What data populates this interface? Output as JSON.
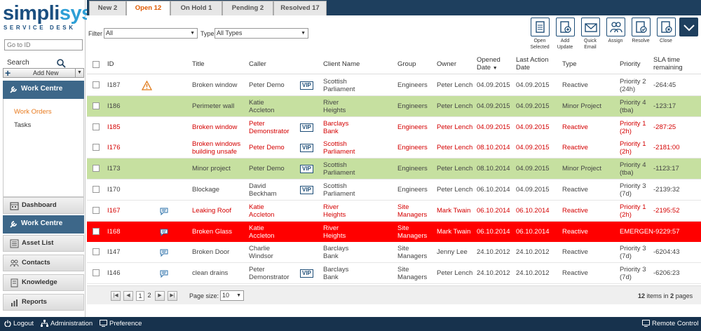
{
  "logo": {
    "word_a": "simpli",
    "word_b": "sys",
    "sub": "SERVICE DESK"
  },
  "sidebar": {
    "goto_placeholder": "Go to ID",
    "search_label": "Search",
    "add_new_label": "Add New",
    "work_centre_open": "Work Centre",
    "sub_items": [
      "Work Orders",
      "Tasks"
    ],
    "items": [
      {
        "label": "Dashboard",
        "icon": "calendar-icon"
      },
      {
        "label": "Work Centre",
        "icon": "wrench-icon"
      },
      {
        "label": "Asset List",
        "icon": "list-icon"
      },
      {
        "label": "Contacts",
        "icon": "people-icon"
      },
      {
        "label": "Knowledge",
        "icon": "book-icon"
      },
      {
        "label": "Reports",
        "icon": "chart-icon"
      }
    ]
  },
  "tabs": [
    "New 2",
    "Open 12",
    "On Hold 1",
    "Pending 2",
    "Resolved 17"
  ],
  "active_tab": "Open 12",
  "filter": {
    "filter_label": "Filter",
    "filter_value": "All",
    "type_label": "Type",
    "type_value": "All Types"
  },
  "toolbar": [
    {
      "label": "Open Selected",
      "icon": "document-icon"
    },
    {
      "label": "Add Update",
      "icon": "add-document-icon"
    },
    {
      "label": "Quick Email",
      "icon": "envelope-icon"
    },
    {
      "label": "Assign",
      "icon": "assign-people-icon"
    },
    {
      "label": "Resolve",
      "icon": "resolve-check-icon"
    },
    {
      "label": "Close",
      "icon": "close-circle-icon"
    }
  ],
  "columns": [
    "ID",
    "Title",
    "Caller",
    "Client Name",
    "Group",
    "Owner",
    "Opened Date",
    "Last Action Date",
    "Type",
    "Priority",
    "SLA time remaining"
  ],
  "rows": [
    {
      "id": "I187",
      "flag": "warning",
      "title": "Broken window",
      "caller": "Peter Demo",
      "vip": "VIP",
      "client": "Scottish Parliament",
      "group": "Engineers",
      "owner": "Peter Lench",
      "opened": "04.09.2015",
      "last": "04.09.2015",
      "type": "Reactive",
      "priority": "Priority 2 (24h)",
      "sla": "-264:45",
      "style": "normal"
    },
    {
      "id": "I186",
      "flag": "",
      "title": "Perimeter wall",
      "caller": "Katie Accleton",
      "vip": "",
      "client": "River Heights",
      "group": "Engineers",
      "owner": "Peter Lench",
      "opened": "04.09.2015",
      "last": "04.09.2015",
      "type": "Minor Project",
      "priority": "Priority 4 (tba)",
      "sla": "-123:17",
      "style": "green"
    },
    {
      "id": "I185",
      "flag": "",
      "title": "Broken window",
      "caller": "Peter Demonstrator",
      "vip": "VIP",
      "client": "Barclays Bank",
      "group": "Engineers",
      "owner": "Peter Lench",
      "opened": "04.09.2015",
      "last": "04.09.2015",
      "type": "Reactive",
      "priority": "Priority 1 (2h)",
      "sla": "-287:25",
      "style": "redtext"
    },
    {
      "id": "I176",
      "flag": "",
      "title": "Broken windows building unsafe",
      "caller": "Peter Demo",
      "vip": "VIP",
      "client": "Scottish Parliament",
      "group": "Engineers",
      "owner": "Peter Lench",
      "opened": "08.10.2014",
      "last": "04.09.2015",
      "type": "Reactive",
      "priority": "Priority 1 (2h)",
      "sla": "-2181:00",
      "style": "redtext"
    },
    {
      "id": "I173",
      "flag": "",
      "title": "Minor project",
      "caller": "Peter Demo",
      "vip": "VIP",
      "client": "Scottish Parliament",
      "group": "Engineers",
      "owner": "Peter Lench",
      "opened": "08.10.2014",
      "last": "04.09.2015",
      "type": "Minor Project",
      "priority": "Priority 4 (tba)",
      "sla": "-1123:17",
      "style": "green"
    },
    {
      "id": "I170",
      "flag": "",
      "title": "Blockage",
      "caller": "David Beckham",
      "vip": "VIP",
      "client": "Scottish Parliament",
      "group": "Engineers",
      "owner": "Peter Lench",
      "opened": "06.10.2014",
      "last": "04.09.2015",
      "type": "Reactive",
      "priority": "Priority 3 (7d)",
      "sla": "-2139:32",
      "style": "normal"
    },
    {
      "id": "I167",
      "flag": "message",
      "title": "Leaking Roof",
      "caller": "Katie Accleton",
      "vip": "",
      "client": "River Heights",
      "group": "Site Managers",
      "owner": "Mark Twain",
      "opened": "06.10.2014",
      "last": "06.10.2014",
      "type": "Reactive",
      "priority": "Priority 1 (2h)",
      "sla": "-2195:52",
      "style": "redtext"
    },
    {
      "id": "I168",
      "flag": "message",
      "title": "Broken Glass",
      "caller": "Katie Accleton",
      "vip": "",
      "client": "River Heights",
      "group": "Site Managers",
      "owner": "Mark Twain",
      "opened": "06.10.2014",
      "last": "06.10.2014",
      "type": "Reactive",
      "priority": "EMERGEN",
      "sla": "-9229:57",
      "style": "red"
    },
    {
      "id": "I147",
      "flag": "message",
      "title": "Broken Door",
      "caller": "Charlie Windsor",
      "vip": "",
      "client": "Barclays Bank",
      "group": "Site Managers",
      "owner": "Jenny Lee",
      "opened": "24.10.2012",
      "last": "24.10.2012",
      "type": "Reactive",
      "priority": "Priority 3 (7d)",
      "sla": "-6204:43",
      "style": "normal"
    },
    {
      "id": "I146",
      "flag": "message",
      "title": "clean drains",
      "caller": "Peter Demonstrator",
      "vip": "VIP",
      "client": "Barclays Bank",
      "group": "Site Managers",
      "owner": "Peter Lench",
      "opened": "24.10.2012",
      "last": "24.10.2012",
      "type": "Reactive",
      "priority": "Priority 3 (7d)",
      "sla": "-6206:23",
      "style": "normal"
    }
  ],
  "pager": {
    "pages": [
      "1",
      "2"
    ],
    "current": "1",
    "page_size_label": "Page size:",
    "page_size": "10",
    "summary_count": "12",
    "summary_mid": "items in",
    "summary_pages": "2",
    "summary_end": "pages"
  },
  "footer": {
    "logout": "Logout",
    "administration": "Administration",
    "preference": "Preference",
    "remote": "Remote Control"
  },
  "colors": {
    "green_row": "#c6e0a0",
    "red_row": "#ff0000",
    "red_text": "#d40000",
    "nav_blue": "#3d6789",
    "tab_bar": "#1e3f5e",
    "footer": "#17324d"
  }
}
